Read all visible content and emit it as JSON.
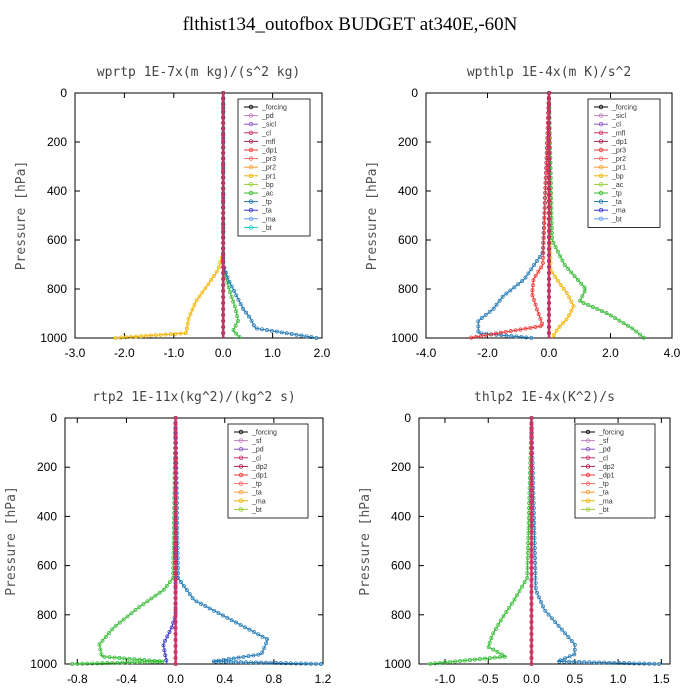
{
  "title": "flthist134_outofbox  BUDGET at340E,-60N",
  "chart_data": [
    {
      "type": "line",
      "title": "wprtp  1E-7x(m kg)/(s^2 kg)",
      "ylabel": "Pressure [hPa]",
      "xlim": [
        -3.0,
        2.0
      ],
      "ylim": [
        1000,
        0
      ],
      "xticks": [
        "-3.0",
        "-2.0",
        "-1.0",
        "0.0",
        "1.0",
        "2.0"
      ],
      "yticks": [
        "0",
        "200",
        "400",
        "600",
        "800",
        "1000"
      ],
      "legend_position": "top-right",
      "legend": [
        "_forcing",
        "_pd",
        "_sicl",
        "_cl",
        "_mfl",
        "_dp1",
        "_pr3",
        "_pr2",
        "_pr1",
        "_bp",
        "_ac",
        "_tp",
        "_ta",
        "_ma",
        "_bt"
      ],
      "series": [
        {
          "name": "_pr1",
          "color": "#f0b400",
          "x": [
            0,
            0,
            -0.1,
            -0.3,
            -0.55,
            -0.7,
            -0.75,
            -2.2
          ],
          "y": [
            0,
            650,
            720,
            780,
            850,
            920,
            980,
            1000
          ]
        },
        {
          "name": "_ac",
          "color": "#33bb33",
          "x": [
            0,
            0,
            0.05,
            0.15,
            0.25,
            0.3,
            0.2,
            0.35
          ],
          "y": [
            0,
            700,
            750,
            820,
            880,
            930,
            970,
            1000
          ]
        },
        {
          "name": "_tp",
          "color": "#1f77b4",
          "x": [
            0,
            0,
            0.1,
            0.25,
            0.4,
            0.55,
            0.65,
            1.9
          ],
          "y": [
            0,
            700,
            760,
            820,
            880,
            920,
            960,
            1000
          ]
        },
        {
          "name": "_forcing",
          "color": "#000000",
          "x": [
            0,
            0
          ],
          "y": [
            0,
            1000
          ]
        },
        {
          "name": "_bt",
          "color": "#cc3366",
          "x": [
            0,
            0
          ],
          "y": [
            0,
            1000
          ]
        }
      ]
    },
    {
      "type": "line",
      "title": "wpthlp  1E-4x(m K)/s^2",
      "ylabel": "Pressure [hPa]",
      "xlim": [
        -4.0,
        4.0
      ],
      "ylim": [
        1000,
        0
      ],
      "xticks": [
        "-4.0",
        "-2.0",
        "0.0",
        "2.0",
        "4.0"
      ],
      "yticks": [
        "0",
        "200",
        "400",
        "600",
        "800",
        "1000"
      ],
      "legend_position": "top-right",
      "legend": [
        "_forcing",
        "_sicl",
        "_cl",
        "_mfl",
        "_dp1",
        "_pr3",
        "_pr2",
        "_pr1",
        "_bp",
        "_ac",
        "_tp",
        "_ta",
        "_ma",
        "_bt"
      ],
      "series": [
        {
          "name": "_pr1",
          "color": "#f0b400",
          "x": [
            0,
            0.05,
            0.25,
            0.6,
            0.8,
            0.6,
            0.3,
            0.1
          ],
          "y": [
            0,
            720,
            760,
            820,
            870,
            920,
            960,
            1000
          ]
        },
        {
          "name": "_ac",
          "color": "#33bb33",
          "x": [
            0,
            0.1,
            0.5,
            1.2,
            1.0,
            1.9,
            2.7,
            3.1
          ],
          "y": [
            0,
            600,
            700,
            800,
            850,
            900,
            960,
            1000
          ]
        },
        {
          "name": "_tp",
          "color": "#1f77b4",
          "x": [
            0,
            -0.2,
            -0.8,
            -1.5,
            -1.8,
            -2.3,
            -2.3,
            -0.5
          ],
          "y": [
            0,
            650,
            760,
            830,
            880,
            930,
            980,
            1000
          ]
        },
        {
          "name": "_dp1",
          "color": "#ee3333",
          "x": [
            0,
            -0.2,
            -0.5,
            -0.55,
            -0.4,
            -0.2,
            -2.6
          ],
          "y": [
            0,
            700,
            760,
            820,
            880,
            950,
            1000
          ]
        },
        {
          "name": "_forcing",
          "color": "#000000",
          "x": [
            0,
            0
          ],
          "y": [
            0,
            1000
          ]
        },
        {
          "name": "_bt",
          "color": "#cc3366",
          "x": [
            0,
            0
          ],
          "y": [
            0,
            1000
          ]
        }
      ]
    },
    {
      "type": "line",
      "title": "rtp2  1E-11x(kg^2)/(kg^2 s)",
      "ylabel": "Pressure [hPa]",
      "xlim": [
        -0.9,
        1.2
      ],
      "ylim": [
        1000,
        0
      ],
      "xticks": [
        "-0.8",
        "-0.4",
        "0.0",
        "0.4",
        "0.8",
        "1.2"
      ],
      "yticks": [
        "0",
        "200",
        "400",
        "600",
        "800",
        "1000"
      ],
      "legend_position": "top-right",
      "legend": [
        "_forcing",
        "_sf",
        "_pd",
        "_cl",
        "_dp2",
        "_dp1",
        "_tp",
        "_ta",
        "_ma",
        "_bt"
      ],
      "series": [
        {
          "name": "_dp1",
          "color": "#33bb33",
          "x": [
            0,
            -0.02,
            -0.1,
            -0.3,
            -0.5,
            -0.62,
            -0.6,
            -0.1,
            -0.85
          ],
          "y": [
            0,
            650,
            700,
            770,
            850,
            920,
            970,
            990,
            1000
          ]
        },
        {
          "name": "_tp",
          "color": "#1f77b4",
          "x": [
            0,
            0.02,
            0.15,
            0.45,
            0.75,
            0.7,
            0.3,
            1.2
          ],
          "y": [
            0,
            650,
            740,
            820,
            900,
            960,
            990,
            1000
          ]
        },
        {
          "name": "_ta",
          "color": "#3333cc",
          "x": [
            0,
            0,
            -0.03,
            -0.1,
            -0.07
          ],
          "y": [
            0,
            800,
            850,
            920,
            1000
          ]
        },
        {
          "name": "_forcing",
          "color": "#ee3333",
          "x": [
            0,
            0
          ],
          "y": [
            0,
            1000
          ]
        },
        {
          "name": "_bt",
          "color": "#cc3366",
          "x": [
            0,
            0
          ],
          "y": [
            0,
            1000
          ]
        }
      ]
    },
    {
      "type": "line",
      "title": "thlp2  1E-4x(K^2)/s",
      "ylabel": "Pressure [hPa]",
      "xlim": [
        -1.3,
        1.6
      ],
      "ylim": [
        1000,
        0
      ],
      "xticks": [
        "-1.0",
        "-0.5",
        "0.0",
        "0.5",
        "1.0",
        "1.5"
      ],
      "yticks": [
        "0",
        "200",
        "400",
        "600",
        "800",
        "1000"
      ],
      "legend_position": "top-right",
      "legend": [
        "_forcing",
        "_sf",
        "_pd",
        "_cl",
        "_dp2",
        "_dp1",
        "_tp",
        "_ta",
        "_ma",
        "_bt"
      ],
      "series": [
        {
          "name": "_dp1",
          "color": "#33bb33",
          "x": [
            0,
            -0.05,
            -0.2,
            -0.35,
            -0.45,
            -0.5,
            -0.3,
            -1.2
          ],
          "y": [
            0,
            650,
            740,
            820,
            880,
            930,
            970,
            1000
          ]
        },
        {
          "name": "_tp",
          "color": "#1f77b4",
          "x": [
            0,
            0.05,
            0.15,
            0.35,
            0.5,
            0.5,
            0.3,
            1.5
          ],
          "y": [
            0,
            700,
            780,
            860,
            920,
            960,
            990,
            1000
          ]
        },
        {
          "name": "_forcing",
          "color": "#ee3333",
          "x": [
            0,
            0
          ],
          "y": [
            0,
            1000
          ]
        },
        {
          "name": "_bt",
          "color": "#cc3366",
          "x": [
            0,
            0
          ],
          "y": [
            0,
            1000
          ]
        }
      ]
    }
  ]
}
